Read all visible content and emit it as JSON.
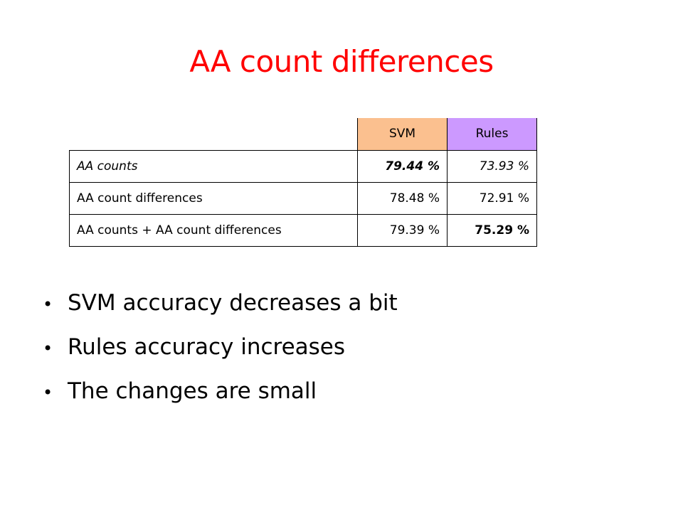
{
  "slide": {
    "title": "AA count differences"
  },
  "table": {
    "headers": [
      "",
      "SVM",
      "Rules"
    ],
    "rows": [
      {
        "label": "AA counts",
        "svm": "79.44 %",
        "rules": "73.93 %"
      },
      {
        "label": "AA count differences",
        "svm": "78.48 %",
        "rules": "72.91 %"
      },
      {
        "label": "AA counts + AA count differences",
        "svm": "79.39 %",
        "rules": "75.29 %"
      }
    ]
  },
  "bullets": [
    "SVM accuracy decreases a bit",
    "Rules accuracy increases",
    "The changes are small"
  ],
  "colors": {
    "title": "#ff0000",
    "svm_header": "#fbc08f",
    "rules_header": "#cc99ff"
  }
}
